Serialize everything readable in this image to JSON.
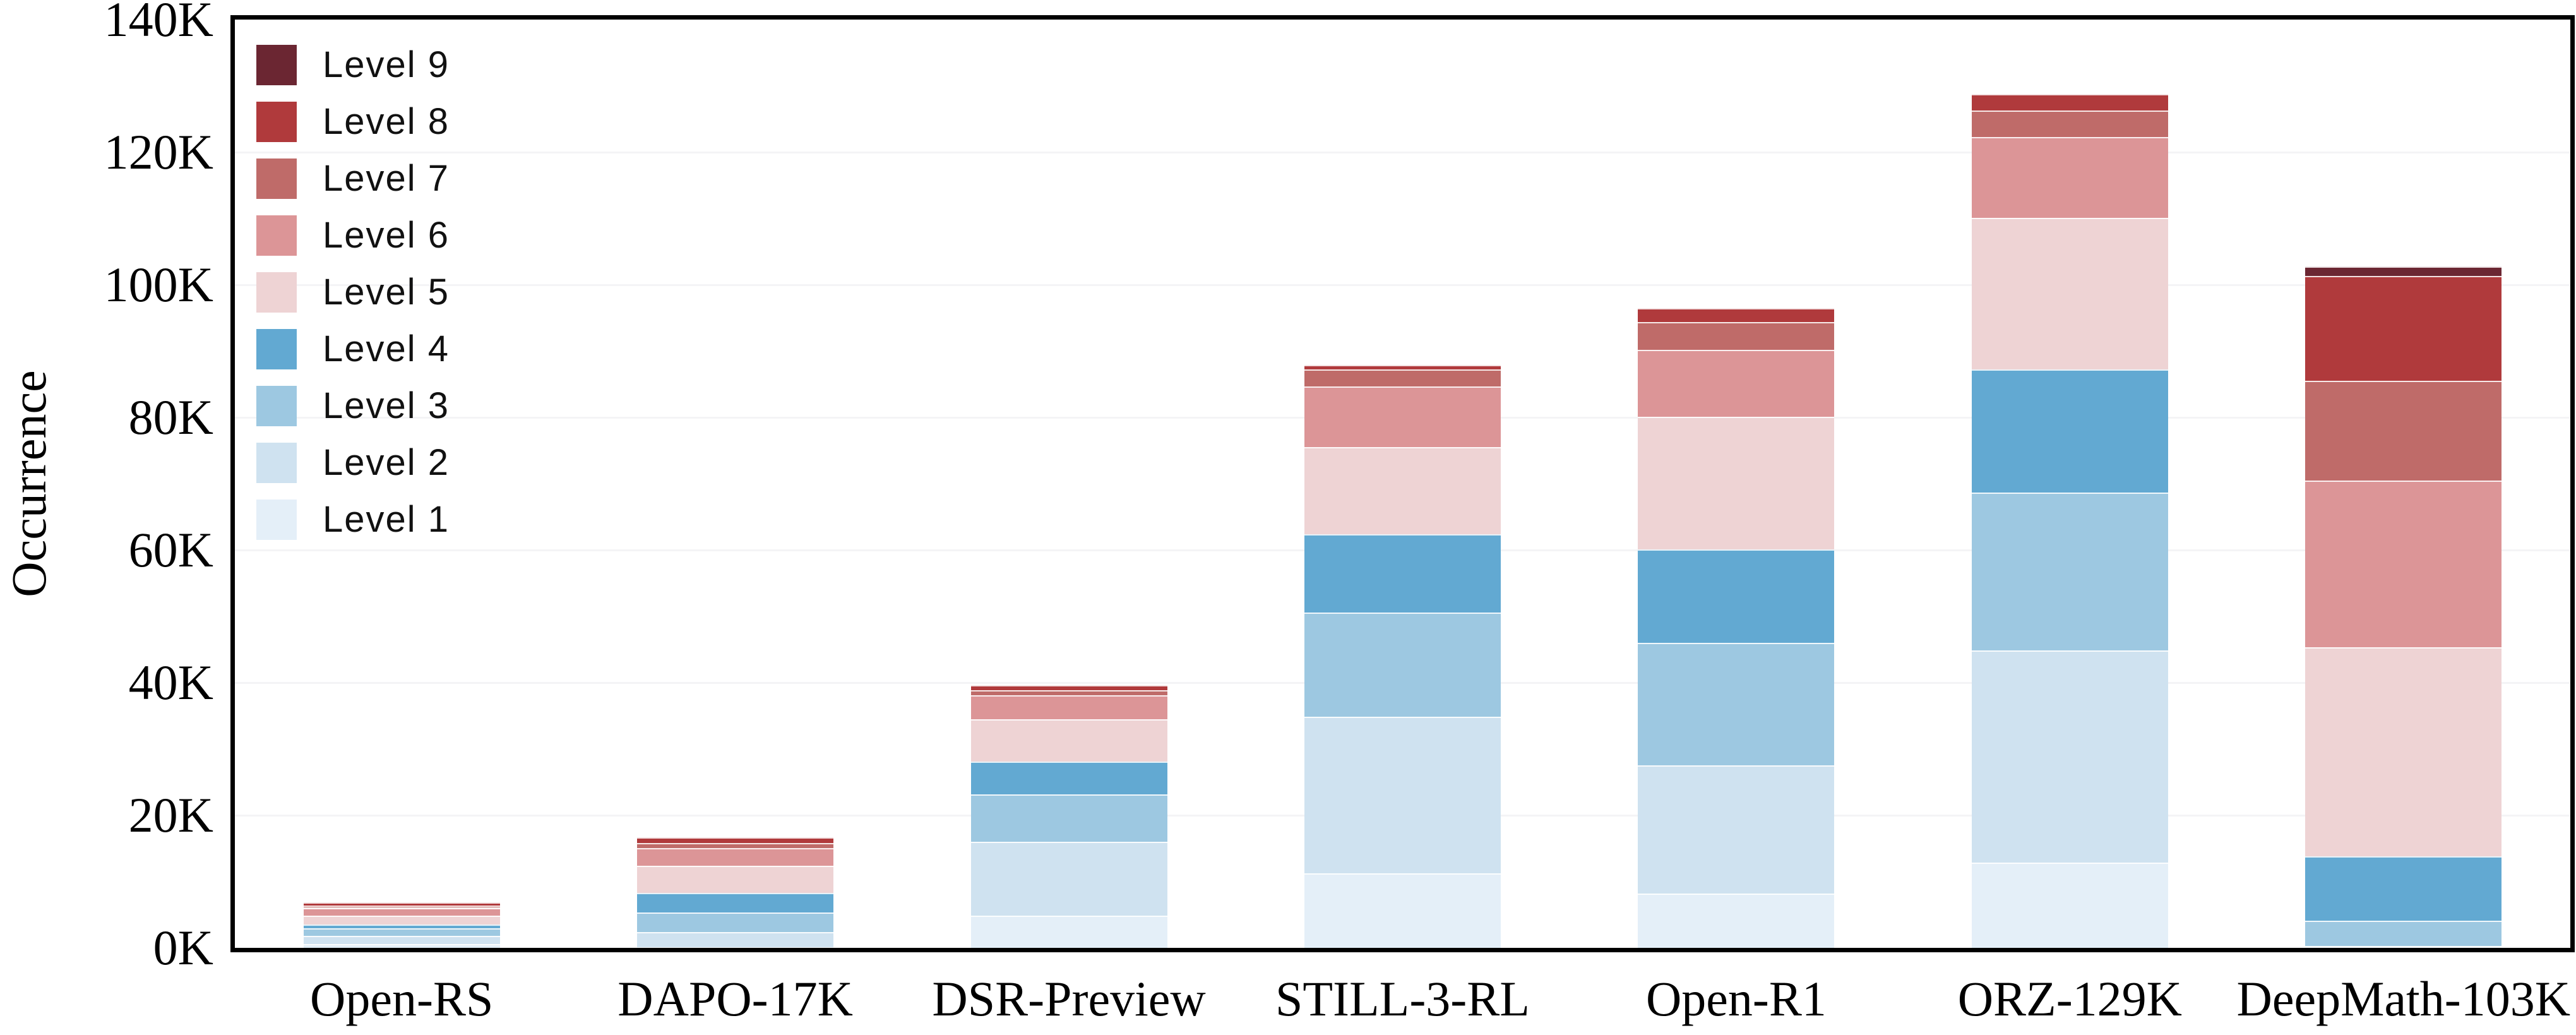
{
  "chart_data": {
    "type": "bar",
    "stacked": true,
    "title": "",
    "xlabel": "",
    "ylabel": "Occurrence",
    "ylim": [
      0,
      140000
    ],
    "grid": true,
    "legend_position": "upper-left",
    "yticks": [
      {
        "value": 0,
        "label": "0K"
      },
      {
        "value": 20000,
        "label": "20K"
      },
      {
        "value": 40000,
        "label": "40K"
      },
      {
        "value": 60000,
        "label": "60K"
      },
      {
        "value": 80000,
        "label": "80K"
      },
      {
        "value": 100000,
        "label": "100K"
      },
      {
        "value": 120000,
        "label": "120K"
      },
      {
        "value": 140000,
        "label": "140K"
      }
    ],
    "categories": [
      "Open-RS",
      "DAPO-17K",
      "DSR-Preview",
      "STILL-3-RL",
      "Open-R1",
      "ORZ-129K",
      "DeepMath-103K"
    ],
    "series": [
      {
        "name": "Level 1",
        "color": "#e4eff8",
        "values": [
          600,
          100,
          4900,
          11200,
          8200,
          12900,
          100
        ]
      },
      {
        "name": "Level 2",
        "color": "#cfe2f0",
        "values": [
          1200,
          2300,
          11100,
          23700,
          19300,
          32000,
          200
        ]
      },
      {
        "name": "Level 3",
        "color": "#9dc8e1",
        "values": [
          1200,
          2900,
          7100,
          15700,
          18500,
          23800,
          3800
        ]
      },
      {
        "name": "Level 4",
        "color": "#62a9d2",
        "values": [
          550,
          2950,
          5000,
          11800,
          14100,
          18500,
          9700
        ]
      },
      {
        "name": "Level 5",
        "color": "#eed3d4",
        "values": [
          1350,
          4100,
          6400,
          13100,
          20000,
          22900,
          31500
        ]
      },
      {
        "name": "Level 6",
        "color": "#dc9597",
        "values": [
          1150,
          2700,
          3600,
          9200,
          10100,
          12200,
          25200
        ]
      },
      {
        "name": "Level 7",
        "color": "#bf6b69",
        "values": [
          350,
          750,
          800,
          2500,
          4200,
          4000,
          15000
        ]
      },
      {
        "name": "Level 8",
        "color": "#b03a3c",
        "values": [
          500,
          850,
          700,
          700,
          2100,
          2500,
          15800
        ]
      },
      {
        "name": "Level 9",
        "color": "#6b2632",
        "values": [
          0,
          0,
          0,
          0,
          0,
          0,
          1500
        ]
      }
    ],
    "legend_items": [
      "Level 9",
      "Level 8",
      "Level 7",
      "Level 6",
      "Level 5",
      "Level 4",
      "Level 3",
      "Level 2",
      "Level 1"
    ]
  }
}
